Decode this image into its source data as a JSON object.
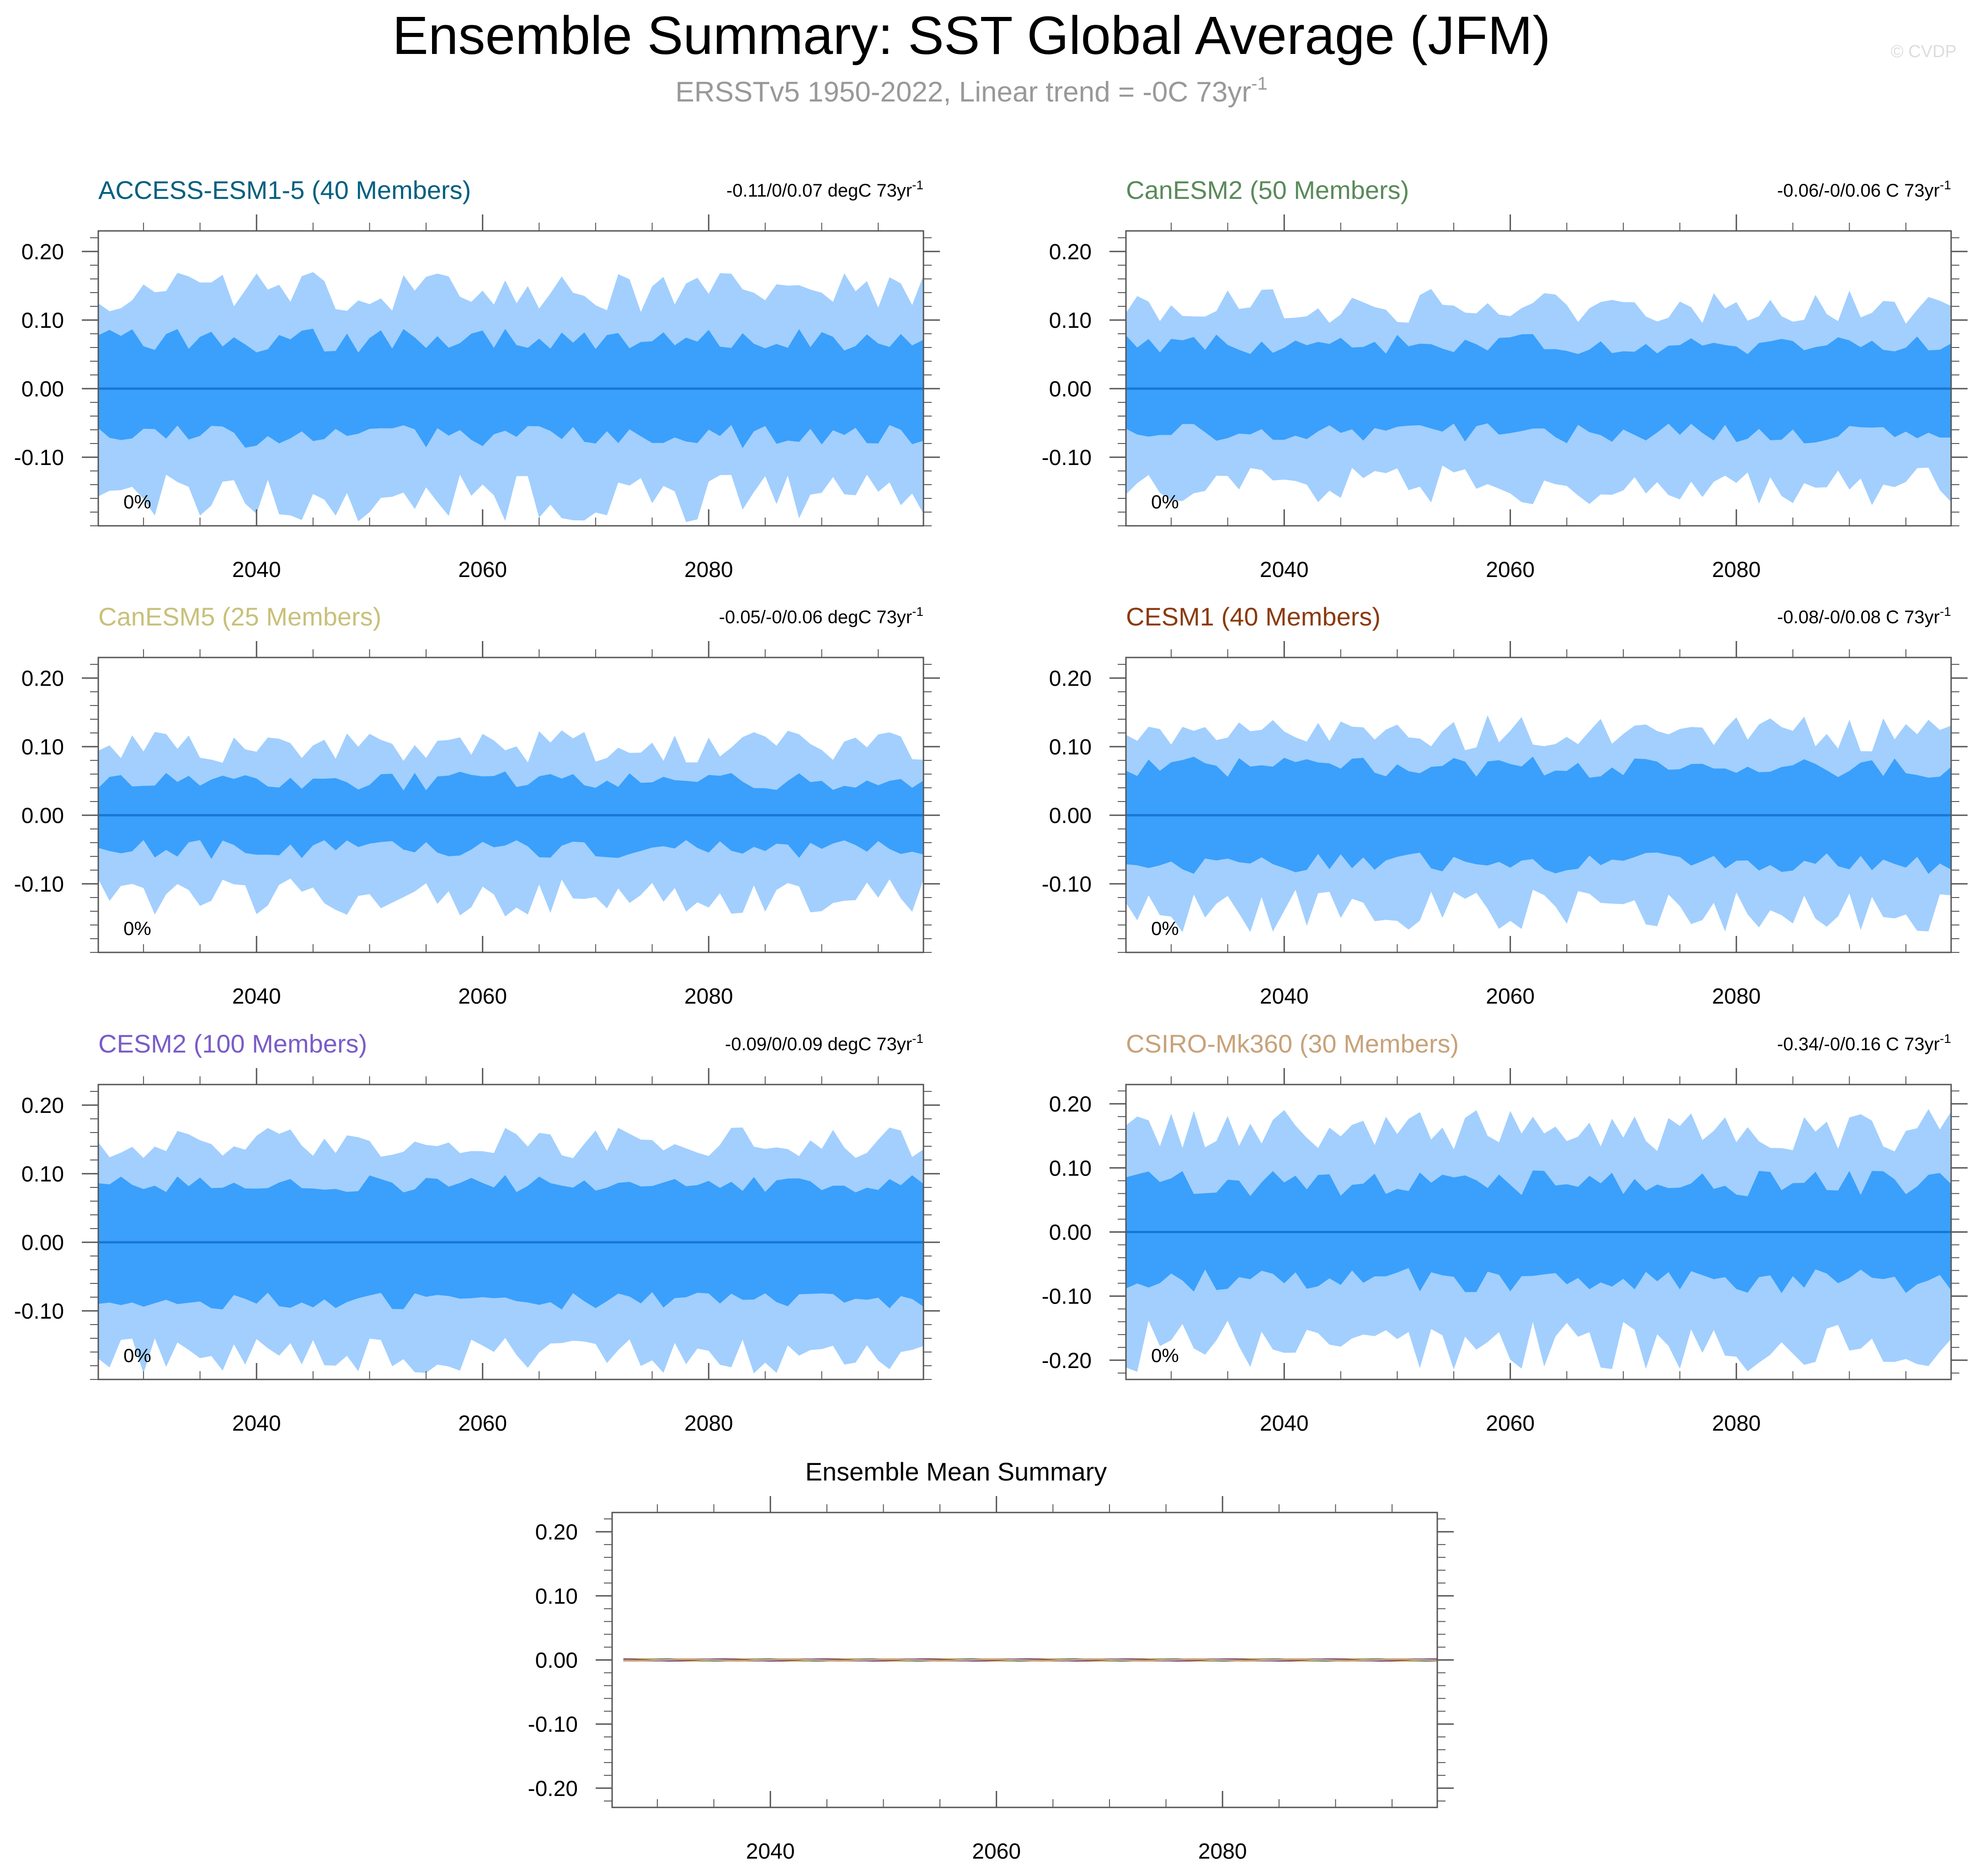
{
  "figure": {
    "title": "Ensemble Summary: SST Global Average (JFM)",
    "subtitle_main": "ERSSTv5 1950-2022, Linear trend = -0C 73yr",
    "subtitle_sup": "-1",
    "watermark": "© CVDP"
  },
  "colors": {
    "band_outer": "#a2cffe",
    "band_inner": "#3aa0fc",
    "mean_line": "#1976d2",
    "axis": "#555555",
    "text": "#000000",
    "subtitle": "#999999"
  },
  "chart_data": [
    {
      "type": "area",
      "id": "access",
      "model_name": "ACCESS-ESM1-5 (40 Members)",
      "name_color": "#006080",
      "trend_main": "-0.11/0/0.07 degC 73yr",
      "trend_sup": "-1",
      "percent_label": "0%",
      "xlim": [
        2026,
        2099
      ],
      "ylim": [
        -0.2,
        0.23
      ],
      "xticks": [
        2040,
        2060,
        2080
      ],
      "xtick_labels": [
        "2040",
        "2060",
        "2080"
      ],
      "yticks": [
        -0.1,
        0.0,
        0.1,
        0.2
      ],
      "ytick_labels": [
        "-0.10",
        "0.00",
        "0.10",
        "0.20"
      ],
      "amplitude": 1.0,
      "outer_base": 0.14,
      "inner_base": 0.07,
      "x_start": 2026,
      "x_end": 2099
    },
    {
      "type": "area",
      "id": "canesm2",
      "model_name": "CanESM2 (50 Members)",
      "name_color": "#5a8a5a",
      "trend_main": "-0.06/-0/0.06 C 73yr",
      "trend_sup": "-1",
      "percent_label": "0%",
      "xlim": [
        2026,
        2099
      ],
      "ylim": [
        -0.2,
        0.23
      ],
      "xticks": [
        2040,
        2060,
        2080
      ],
      "xtick_labels": [
        "2040",
        "2060",
        "2080"
      ],
      "yticks": [
        -0.1,
        0.0,
        0.1,
        0.2
      ],
      "ytick_labels": [
        "-0.10",
        "0.00",
        "0.10",
        "0.20"
      ],
      "amplitude": 0.85,
      "outer_base": 0.12,
      "inner_base": 0.065,
      "x_start": 2026,
      "x_end": 2099
    },
    {
      "type": "area",
      "id": "canesm5",
      "model_name": "CanESM5 (25 Members)",
      "name_color": "#c9c07a",
      "trend_main": "-0.05/-0/0.06 degC 73yr",
      "trend_sup": "-1",
      "percent_label": "0%",
      "xlim": [
        2026,
        2099
      ],
      "ylim": [
        -0.2,
        0.23
      ],
      "xticks": [
        2040,
        2060,
        2080
      ],
      "xtick_labels": [
        "2040",
        "2060",
        "2080"
      ],
      "yticks": [
        -0.1,
        0.0,
        0.1,
        0.2
      ],
      "ytick_labels": [
        "-0.10",
        "0.00",
        "0.10",
        "0.20"
      ],
      "amplitude": 0.8,
      "outer_base": 0.1,
      "inner_base": 0.05,
      "x_start": 2026,
      "x_end": 2099
    },
    {
      "type": "area",
      "id": "cesm1",
      "model_name": "CESM1 (40 Members)",
      "name_color": "#8b3a0e",
      "trend_main": "-0.08/-0/0.08 C 73yr",
      "trend_sup": "-1",
      "percent_label": "0%",
      "xlim": [
        2026,
        2099
      ],
      "ylim": [
        -0.2,
        0.23
      ],
      "xticks": [
        2040,
        2060,
        2080
      ],
      "xtick_labels": [
        "2040",
        "2060",
        "2080"
      ],
      "yticks": [
        -0.1,
        0.0,
        0.1,
        0.2
      ],
      "ytick_labels": [
        "-0.10",
        "0.00",
        "0.10",
        "0.20"
      ],
      "amplitude": 0.9,
      "outer_base": 0.12,
      "inner_base": 0.07,
      "x_start": 2026,
      "x_end": 2099
    },
    {
      "type": "area",
      "id": "cesm2",
      "model_name": "CESM2 (100 Members)",
      "name_color": "#7a5cc8",
      "trend_main": "-0.09/0/0.09 degC 73yr",
      "trend_sup": "-1",
      "percent_label": "0%",
      "xlim": [
        2026,
        2099
      ],
      "ylim": [
        -0.2,
        0.23
      ],
      "xticks": [
        2040,
        2060,
        2080
      ],
      "xtick_labels": [
        "2040",
        "2060",
        "2080"
      ],
      "yticks": [
        -0.1,
        0.0,
        0.1,
        0.2
      ],
      "ytick_labels": [
        "-0.10",
        "0.00",
        "0.10",
        "0.20"
      ],
      "amplitude": 0.75,
      "outer_base": 0.145,
      "inner_base": 0.085,
      "x_start": 2026,
      "x_end": 2099
    },
    {
      "type": "area",
      "id": "csiro",
      "model_name": "CSIRO-Mk360 (30 Members)",
      "name_color": "#c8a27a",
      "trend_main": "-0.34/-0/0.16 C 73yr",
      "trend_sup": "-1",
      "percent_label": "0%",
      "xlim": [
        2026,
        2099
      ],
      "ylim": [
        -0.23,
        0.23
      ],
      "xticks": [
        2040,
        2060,
        2080
      ],
      "xtick_labels": [
        "2040",
        "2060",
        "2080"
      ],
      "yticks": [
        -0.2,
        -0.1,
        0.0,
        0.1,
        0.2
      ],
      "ytick_labels": [
        "-0.20",
        "-0.10",
        "0.00",
        "0.10",
        "0.20"
      ],
      "amplitude": 1.2,
      "outer_base": 0.16,
      "inner_base": 0.075,
      "x_start": 2026,
      "x_end": 2099
    },
    {
      "type": "line",
      "id": "ensmean",
      "title": "Ensemble Mean Summary",
      "xlim": [
        2026,
        2099
      ],
      "ylim": [
        -0.23,
        0.23
      ],
      "xticks": [
        2040,
        2060,
        2080
      ],
      "xtick_labels": [
        "2040",
        "2060",
        "2080"
      ],
      "yticks": [
        -0.2,
        -0.1,
        0.0,
        0.1,
        0.2
      ],
      "ytick_labels": [
        "-0.20",
        "-0.10",
        "0.00",
        "0.10",
        "0.20"
      ],
      "series": [
        {
          "name": "ACCESS-ESM1-5",
          "color": "#006080",
          "value": 0.0
        },
        {
          "name": "CanESM2",
          "color": "#5a8a5a",
          "value": 0.0
        },
        {
          "name": "CanESM5",
          "color": "#c9c07a",
          "value": 0.0
        },
        {
          "name": "CESM1",
          "color": "#8b3a0e",
          "value": 0.0
        },
        {
          "name": "CESM2",
          "color": "#7a5cc8",
          "value": 0.0
        },
        {
          "name": "CSIRO-Mk360",
          "color": "#c8a27a",
          "value": 0.0
        }
      ],
      "x_start": 2027,
      "x_end": 2099
    }
  ]
}
